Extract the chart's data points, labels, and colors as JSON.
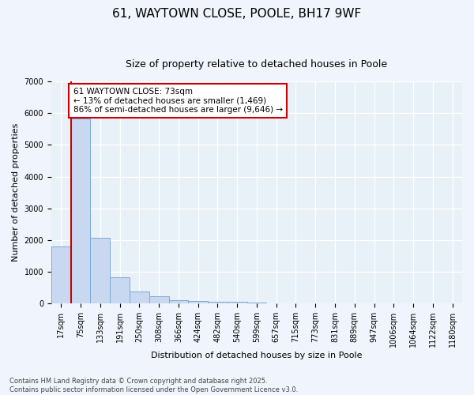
{
  "title": "61, WAYTOWN CLOSE, POOLE, BH17 9WF",
  "subtitle": "Size of property relative to detached houses in Poole",
  "xlabel": "Distribution of detached houses by size in Poole",
  "ylabel": "Number of detached properties",
  "categories": [
    "17sqm",
    "75sqm",
    "133sqm",
    "191sqm",
    "250sqm",
    "308sqm",
    "366sqm",
    "424sqm",
    "482sqm",
    "540sqm",
    "599sqm",
    "657sqm",
    "715sqm",
    "773sqm",
    "831sqm",
    "889sqm",
    "947sqm",
    "1006sqm",
    "1064sqm",
    "1122sqm",
    "1180sqm"
  ],
  "values": [
    1800,
    5820,
    2080,
    830,
    370,
    225,
    105,
    80,
    60,
    45,
    30,
    0,
    0,
    0,
    0,
    0,
    0,
    0,
    0,
    0,
    0
  ],
  "bar_color": "#c8d8f0",
  "bar_edge_color": "#7baad4",
  "ylim": [
    0,
    7000
  ],
  "yticks": [
    0,
    1000,
    2000,
    3000,
    4000,
    5000,
    6000,
    7000
  ],
  "property_line_color": "#cc0000",
  "annotation_title": "61 WAYTOWN CLOSE: 73sqm",
  "annotation_line1": "← 13% of detached houses are smaller (1,469)",
  "annotation_line2": "86% of semi-detached houses are larger (9,646) →",
  "annotation_box_color": "#cc0000",
  "footer_line1": "Contains HM Land Registry data © Crown copyright and database right 2025.",
  "footer_line2": "Contains public sector information licensed under the Open Government Licence v3.0.",
  "bg_color": "#f0f4fc",
  "plot_bg_color": "#e8f0f8",
  "grid_color": "#ffffff",
  "title_fontsize": 11,
  "subtitle_fontsize": 9,
  "tick_fontsize": 7,
  "label_fontsize": 8,
  "footer_fontsize": 6
}
